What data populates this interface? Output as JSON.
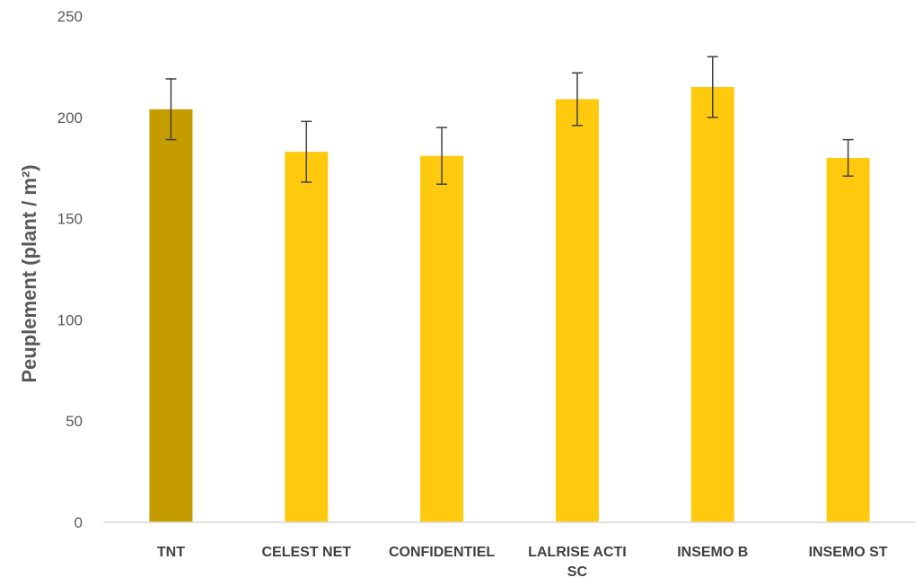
{
  "chart_data": {
    "type": "bar",
    "title": "",
    "xlabel": "",
    "ylabel": "Peuplement (plant / m²)",
    "ylim": [
      0,
      250
    ],
    "yticks": [
      0,
      50,
      100,
      150,
      200,
      250
    ],
    "grid": false,
    "legend": "none",
    "categories": [
      [
        "TNT"
      ],
      [
        "CELEST NET"
      ],
      [
        "CONFIDENTIEL"
      ],
      [
        "LALRISE ACTI",
        "SC"
      ],
      [
        "INSEMO B"
      ],
      [
        "INSEMO ST"
      ]
    ],
    "values": [
      204,
      183,
      181,
      209,
      215,
      180
    ],
    "error": [
      15,
      15,
      14,
      13,
      15,
      9
    ],
    "colors": {
      "control": "#C49C00",
      "treatment": "#FFC90E",
      "axis": "#D9D9D9",
      "error_bar": "#404040"
    }
  }
}
